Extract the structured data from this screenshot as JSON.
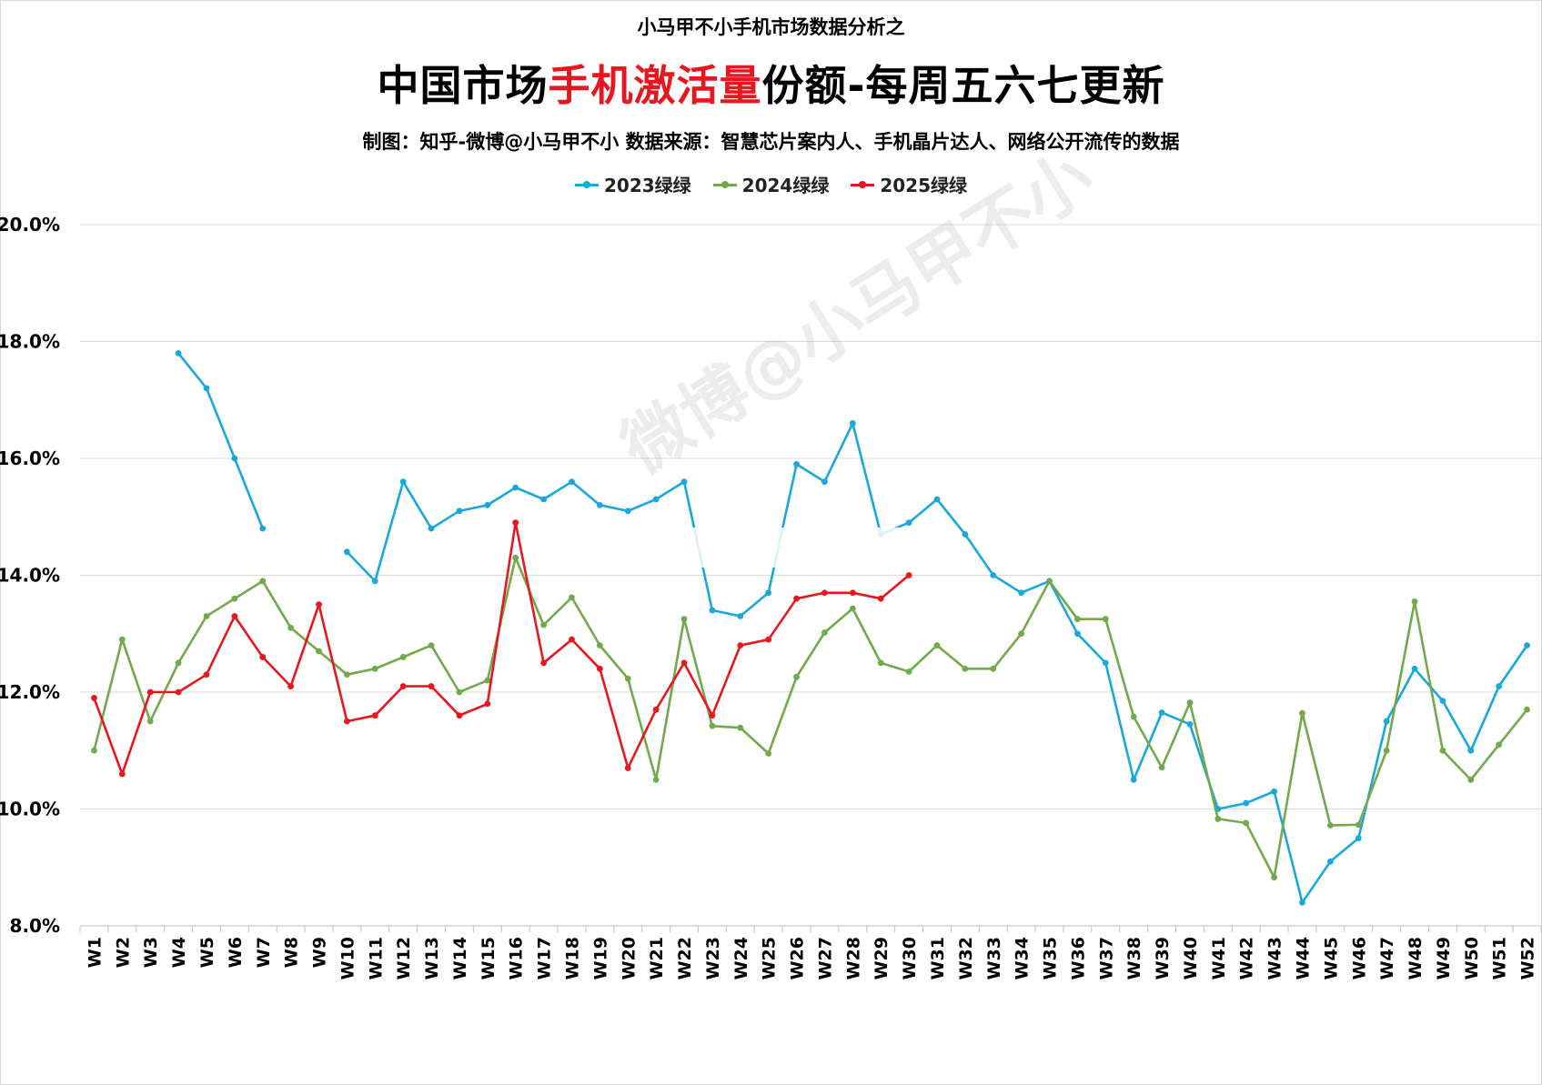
{
  "header": {
    "supertitle": "小马甲不小手机市场数据分析之",
    "title_prefix": "中国市场",
    "title_highlight": "手机激活量",
    "title_suffix": "份额-每周五六七更新",
    "credit": "制图：知乎-微博@小马甲不小  数据来源：智慧芯片案内人、手机晶片达人、网络公开流传的数据"
  },
  "watermark": "微博@小马甲不小",
  "colors": {
    "s2023": "#1aa7dc",
    "s2024": "#72a94a",
    "s2025": "#e8161e",
    "grid": "#d9d9d9"
  },
  "chart_data": {
    "type": "line",
    "title": "中国市场手机激活量份额-每周五六七更新",
    "xlabel": "",
    "ylabel": "",
    "ylim": [
      0.08,
      0.2
    ],
    "yticks": [
      "8.0%",
      "10.0%",
      "12.0%",
      "14.0%",
      "16.0%",
      "18.0%",
      "20.0%"
    ],
    "ytick_values": [
      0.08,
      0.1,
      0.12,
      0.14,
      0.16,
      0.18,
      0.2
    ],
    "grid": true,
    "legend": "top-center",
    "categories": [
      "W1",
      "W2",
      "W3",
      "W4",
      "W5",
      "W6",
      "W7",
      "W8",
      "W9",
      "W10",
      "W11",
      "W12",
      "W13",
      "W14",
      "W15",
      "W16",
      "W17",
      "W18",
      "W19",
      "W20",
      "W21",
      "W22",
      "W23",
      "W24",
      "W25",
      "W26",
      "W27",
      "W28",
      "W29",
      "W30",
      "W31",
      "W32",
      "W33",
      "W34",
      "W35",
      "W36",
      "W37",
      "W38",
      "W39",
      "W40",
      "W41",
      "W42",
      "W43",
      "W44",
      "W45",
      "W46",
      "W47",
      "W48",
      "W49",
      "W50",
      "W51",
      "W52"
    ],
    "series": [
      {
        "name": "2023绿绿",
        "color": "#1aa7dc",
        "values": [
          null,
          null,
          null,
          0.178,
          0.172,
          0.16,
          0.148,
          null,
          null,
          0.144,
          0.139,
          0.156,
          0.148,
          0.151,
          0.152,
          0.155,
          0.153,
          0.156,
          0.152,
          0.151,
          0.153,
          0.156,
          0.134,
          0.133,
          0.137,
          0.159,
          0.156,
          0.166,
          0.147,
          0.149,
          0.153,
          0.147,
          0.14,
          0.137,
          0.139,
          0.13,
          0.125,
          0.105,
          0.1165,
          0.1145,
          0.1,
          0.101,
          0.103,
          0.084,
          0.091,
          0.095,
          0.115,
          0.124,
          0.1185,
          0.11,
          0.121,
          0.128
        ]
      },
      {
        "name": "2024绿绿",
        "color": "#72a94a",
        "values": [
          0.11,
          0.129,
          0.115,
          0.125,
          0.133,
          0.136,
          0.139,
          0.131,
          0.127,
          0.123,
          0.124,
          0.126,
          0.128,
          0.12,
          0.122,
          0.143,
          0.1315,
          0.1362,
          0.128,
          0.1223,
          0.105,
          0.1325,
          0.1142,
          0.1139,
          0.1095,
          0.1226,
          0.1302,
          0.1343,
          0.125,
          0.1235,
          0.128,
          0.124,
          0.124,
          0.13,
          0.139,
          0.1325,
          0.1325,
          0.1158,
          0.1071,
          0.1182,
          0.0983,
          0.0976,
          0.0883,
          0.1164,
          0.0972,
          0.0973,
          0.11,
          0.1355,
          0.11,
          0.105,
          0.111,
          0.117
        ]
      },
      {
        "name": "2025绿绿",
        "color": "#e8161e",
        "values": [
          0.119,
          0.106,
          0.12,
          0.12,
          0.123,
          0.133,
          0.126,
          0.121,
          0.135,
          0.115,
          0.116,
          0.121,
          0.121,
          0.116,
          0.118,
          0.149,
          0.125,
          0.129,
          0.124,
          0.107,
          0.117,
          0.125,
          0.116,
          0.128,
          0.129,
          0.136,
          0.137,
          0.137,
          0.136,
          0.14,
          null,
          null,
          null,
          null,
          null,
          null,
          null,
          null,
          null,
          null,
          null,
          null,
          null,
          null,
          null,
          null,
          null,
          null,
          null,
          null,
          null,
          null
        ]
      }
    ]
  }
}
